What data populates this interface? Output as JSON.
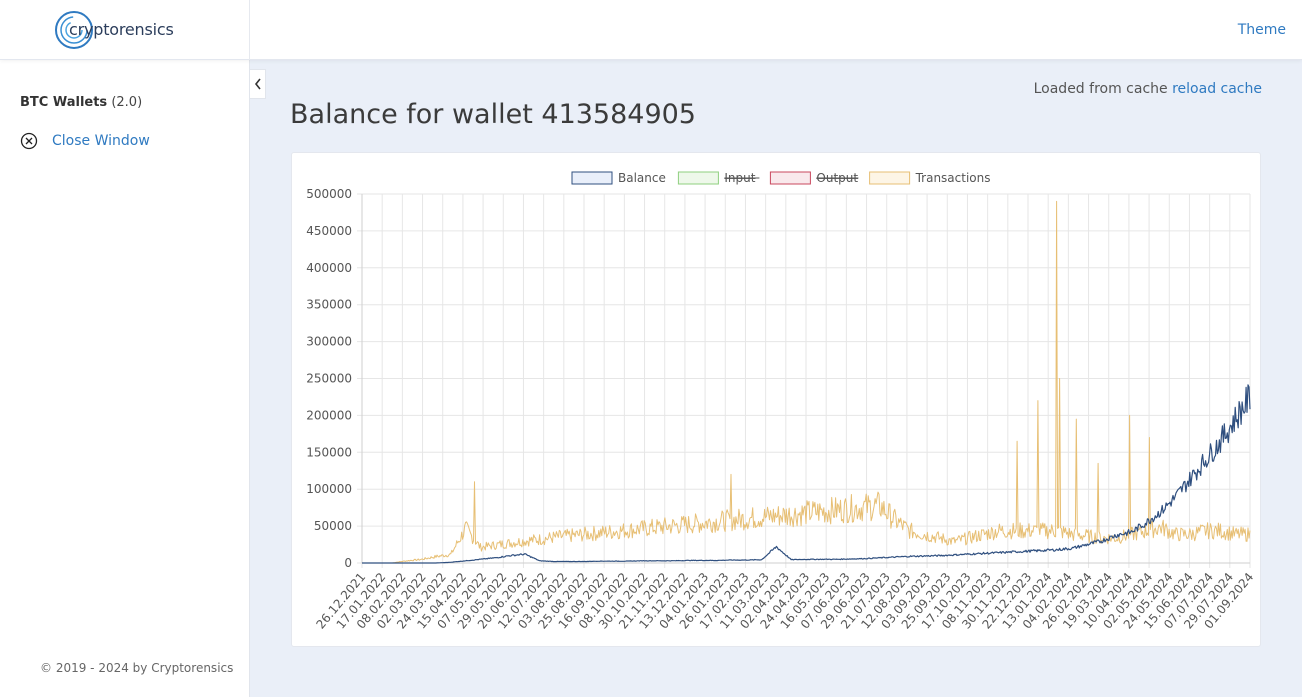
{
  "brand": {
    "name": "cryptorensics"
  },
  "header": {
    "theme_label": "Theme"
  },
  "sidebar": {
    "section_title": "BTC Wallets",
    "section_version": "(2.0)",
    "close_label": "Close Window",
    "footer": "© 2019 - 2024 by Cryptorensics"
  },
  "main": {
    "cache_text": "Loaded from cache",
    "reload_label": "reload cache",
    "title": "Balance for wallet 413584905"
  },
  "colors": {
    "accent": "#2f7ac1",
    "balance": "#2f4f7f",
    "transactions": "#e7bf74",
    "input": "#8fcf7f",
    "output": "#c9485e"
  },
  "chart_data": {
    "type": "line",
    "title": "",
    "xlabel": "",
    "ylabel": "",
    "ylim": [
      0,
      500000
    ],
    "yticks": [
      0,
      50000,
      100000,
      150000,
      200000,
      250000,
      300000,
      350000,
      400000,
      450000,
      500000
    ],
    "grid": true,
    "legend_position": "top",
    "legend": [
      {
        "name": "Balance",
        "hidden": false,
        "color": "#2f4f7f",
        "fill": "#e9effa"
      },
      {
        "name": "Input",
        "hidden": true,
        "color": "#8fcf7f",
        "fill": "#eef8ea"
      },
      {
        "name": "Output",
        "hidden": true,
        "color": "#c9485e",
        "fill": "#f9e9ec"
      },
      {
        "name": "Transactions",
        "hidden": false,
        "color": "#e7bf74",
        "fill": "#fdf5e6"
      }
    ],
    "x_tick_labels": [
      "26.12.2021",
      "17.01.2022",
      "08.02.2022",
      "02.03.2022",
      "24.03.2022",
      "15.04.2022",
      "07.05.2022",
      "29.05.2022",
      "20.06.2022",
      "12.07.2022",
      "03.08.2022",
      "25.08.2022",
      "16.09.2022",
      "08.10.2022",
      "30.10.2022",
      "21.11.2022",
      "13.12.2022",
      "04.01.2023",
      "26.01.2023",
      "17.02.2023",
      "11.03.2023",
      "02.04.2023",
      "24.04.2023",
      "16.05.2023",
      "07.06.2023",
      "29.06.2023",
      "21.07.2023",
      "12.08.2023",
      "03.09.2023",
      "25.09.2023",
      "17.10.2023",
      "08.11.2023",
      "30.11.2023",
      "22.12.2023",
      "13.01.2024",
      "04.02.2024",
      "26.02.2024",
      "19.03.2024",
      "10.04.2024",
      "02.05.2024",
      "24.05.2024",
      "15.06.2024",
      "07.07.2024",
      "29.07.2024",
      "01.09.2024"
    ],
    "series": [
      {
        "name": "Balance",
        "values": [
          0,
          0,
          0,
          0,
          0,
          0,
          1000,
          3000,
          5000,
          7000,
          10000,
          12000,
          3000,
          2000,
          2000,
          2000,
          2500,
          2500,
          2500,
          3000,
          3000,
          3000,
          3500,
          3500,
          3500,
          4000,
          4000,
          4500,
          22000,
          4500,
          5000,
          5000,
          5000,
          5500,
          6000,
          7000,
          8000,
          9000,
          9500,
          10000,
          11000,
          12000,
          13000,
          14000,
          15000,
          16000,
          17000,
          18000,
          20000,
          25000,
          30000,
          38000,
          42000,
          55000,
          70000,
          90000,
          115000,
          140000,
          165000,
          195000,
          225000
        ]
      },
      {
        "name": "Transactions",
        "values": [
          0,
          0,
          0,
          3000,
          5000,
          9000,
          12000,
          48000,
          22000,
          25000,
          28000,
          31000,
          33000,
          36000,
          38000,
          40000,
          42000,
          44000,
          46000,
          48000,
          50000,
          52000,
          54000,
          56000,
          58000,
          60000,
          62000,
          64000,
          66000,
          68000,
          70000,
          72000,
          74000,
          76000,
          78000,
          80000,
          60000,
          45000,
          40000,
          35000,
          30000,
          35000,
          40000,
          45000,
          45000,
          45000,
          45000,
          45000,
          40000,
          38000,
          35000,
          35000,
          40000,
          45000,
          50000,
          40000,
          40000,
          45000,
          45000,
          40000,
          40000
        ],
        "peaks": [
          {
            "date": "29.04.2022",
            "value": 110000
          },
          {
            "date": "06.02.2023",
            "value": 120000
          },
          {
            "date": "19.12.2023",
            "value": 165000
          },
          {
            "date": "11.01.2024",
            "value": 220000
          },
          {
            "date": "01.02.2024",
            "value": 490000
          },
          {
            "date": "04.02.2024",
            "value": 250000
          },
          {
            "date": "22.02.2024",
            "value": 195000
          },
          {
            "date": "17.03.2024",
            "value": 135000
          },
          {
            "date": "21.04.2024",
            "value": 200000
          },
          {
            "date": "13.05.2024",
            "value": 170000
          }
        ]
      }
    ]
  }
}
